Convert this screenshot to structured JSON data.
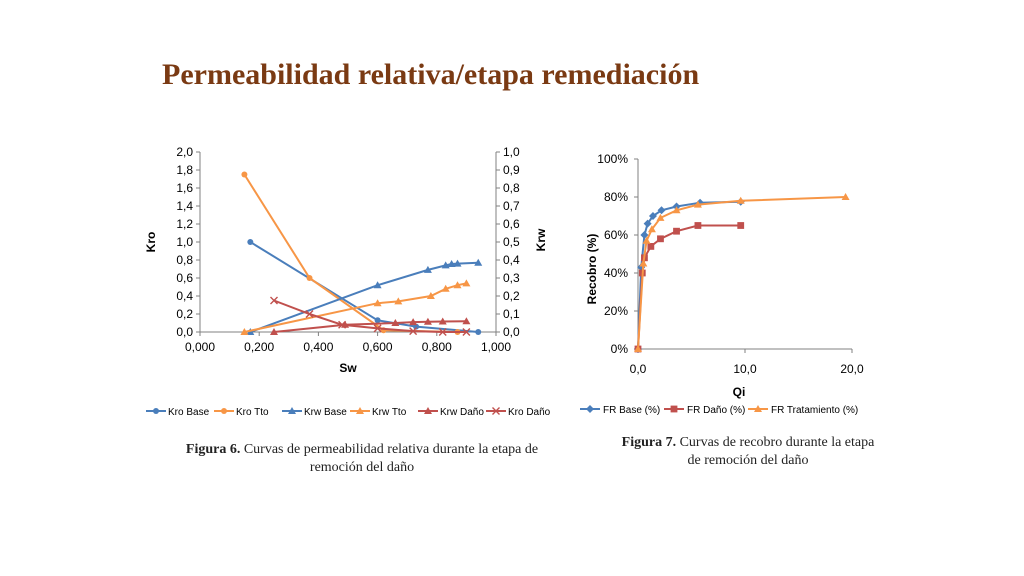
{
  "title": "Permeabilidad relativa/etapa remediación",
  "captions": {
    "fig6_label": "Figura 6.",
    "fig6_text": " Curvas de permeabilidad relativa durante la etapa de remoción del daño",
    "fig7_label": "Figura 7.",
    "fig7_text": " Curvas de recobro durante la etapa de remoción del daño"
  },
  "chart_data": [
    {
      "type": "line",
      "xlabel": "Sw",
      "ylabel": "Kro",
      "y2label": "Krw",
      "xlim": [
        0,
        1
      ],
      "ylim": [
        0,
        2
      ],
      "y2lim": [
        0,
        1
      ],
      "x_ticks": [
        "0,000",
        "0,200",
        "0,400",
        "0,600",
        "0,800",
        "1,000"
      ],
      "y_ticks": [
        "0,0",
        "0,2",
        "0,4",
        "0,6",
        "0,8",
        "1,0",
        "1,2",
        "1,4",
        "1,6",
        "1,8",
        "2,0"
      ],
      "y2_ticks": [
        "0,0",
        "0,1",
        "0,2",
        "0,3",
        "0,4",
        "0,5",
        "0,6",
        "0,7",
        "0,8",
        "0,9",
        "1,0"
      ],
      "legend_position": "bottom",
      "series": [
        {
          "name": "Kro Base",
          "axis": "left",
          "marker": "circle",
          "color": "#4a7ebb",
          "points": [
            [
              0.17,
              1.0
            ],
            [
              0.6,
              0.13
            ],
            [
              0.73,
              0.06
            ],
            [
              0.94,
              0.0
            ]
          ]
        },
        {
          "name": "Kro Tto",
          "axis": "left",
          "marker": "circle",
          "color": "#f79646",
          "points": [
            [
              0.15,
              1.75
            ],
            [
              0.37,
              0.6
            ],
            [
              0.62,
              0.02
            ],
            [
              0.87,
              0.0
            ]
          ]
        },
        {
          "name": "Krw Base",
          "axis": "right",
          "marker": "triangle",
          "color": "#4a7ebb",
          "points": [
            [
              0.17,
              0.0
            ],
            [
              0.6,
              0.26
            ],
            [
              0.77,
              0.345
            ],
            [
              0.83,
              0.37
            ],
            [
              0.85,
              0.378
            ],
            [
              0.87,
              0.38
            ],
            [
              0.94,
              0.385
            ]
          ]
        },
        {
          "name": "Krw Tto",
          "axis": "right",
          "marker": "triangle",
          "color": "#f79646",
          "points": [
            [
              0.15,
              0.0
            ],
            [
              0.6,
              0.16
            ],
            [
              0.67,
              0.17
            ],
            [
              0.78,
              0.2
            ],
            [
              0.83,
              0.24
            ],
            [
              0.87,
              0.26
            ],
            [
              0.9,
              0.27
            ]
          ]
        },
        {
          "name": "Krw Daño",
          "axis": "right",
          "marker": "triangle",
          "color": "#c0504d",
          "points": [
            [
              0.25,
              0.0
            ],
            [
              0.49,
              0.04
            ],
            [
              0.66,
              0.05
            ],
            [
              0.72,
              0.055
            ],
            [
              0.77,
              0.057
            ],
            [
              0.82,
              0.058
            ],
            [
              0.9,
              0.06
            ]
          ]
        },
        {
          "name": "Kro Daño",
          "axis": "left",
          "marker": "x",
          "color": "#c0504d",
          "points": [
            [
              0.25,
              0.35
            ],
            [
              0.37,
              0.2
            ],
            [
              0.48,
              0.08
            ],
            [
              0.6,
              0.04
            ],
            [
              0.72,
              0.01
            ],
            [
              0.82,
              0.0
            ],
            [
              0.9,
              0.0
            ]
          ]
        }
      ]
    },
    {
      "type": "line",
      "xlabel": "Qi",
      "ylabel": "Recobro (%)",
      "xlim": [
        0,
        20
      ],
      "ylim": [
        0,
        100
      ],
      "x_ticks": [
        "0,0",
        "10,0",
        "20,0"
      ],
      "y_ticks": [
        "0%",
        "20%",
        "40%",
        "60%",
        "80%",
        "100%"
      ],
      "legend_position": "bottom",
      "series": [
        {
          "name": "FR Base (%)",
          "marker": "diamond",
          "color": "#4a7ebb",
          "points": [
            [
              0.0,
              0
            ],
            [
              0.3,
              43
            ],
            [
              0.6,
              60
            ],
            [
              0.9,
              66
            ],
            [
              1.4,
              70
            ],
            [
              2.2,
              73
            ],
            [
              3.6,
              75
            ],
            [
              5.8,
              77
            ],
            [
              9.6,
              77.5
            ]
          ]
        },
        {
          "name": "FR Daño (%)",
          "marker": "square",
          "color": "#c0504d",
          "points": [
            [
              0.0,
              0
            ],
            [
              0.4,
              40
            ],
            [
              0.6,
              48
            ],
            [
              1.2,
              54
            ],
            [
              2.1,
              58
            ],
            [
              3.6,
              62
            ],
            [
              5.6,
              65
            ],
            [
              9.6,
              65
            ]
          ]
        },
        {
          "name": "FR Tratamiento (%)",
          "marker": "triangle",
          "color": "#f79646",
          "points": [
            [
              0.0,
              0
            ],
            [
              0.5,
              45
            ],
            [
              0.8,
              57
            ],
            [
              1.3,
              63
            ],
            [
              2.1,
              69
            ],
            [
              3.6,
              73
            ],
            [
              5.6,
              76
            ],
            [
              9.6,
              78
            ],
            [
              19.4,
              80
            ]
          ]
        }
      ]
    }
  ]
}
